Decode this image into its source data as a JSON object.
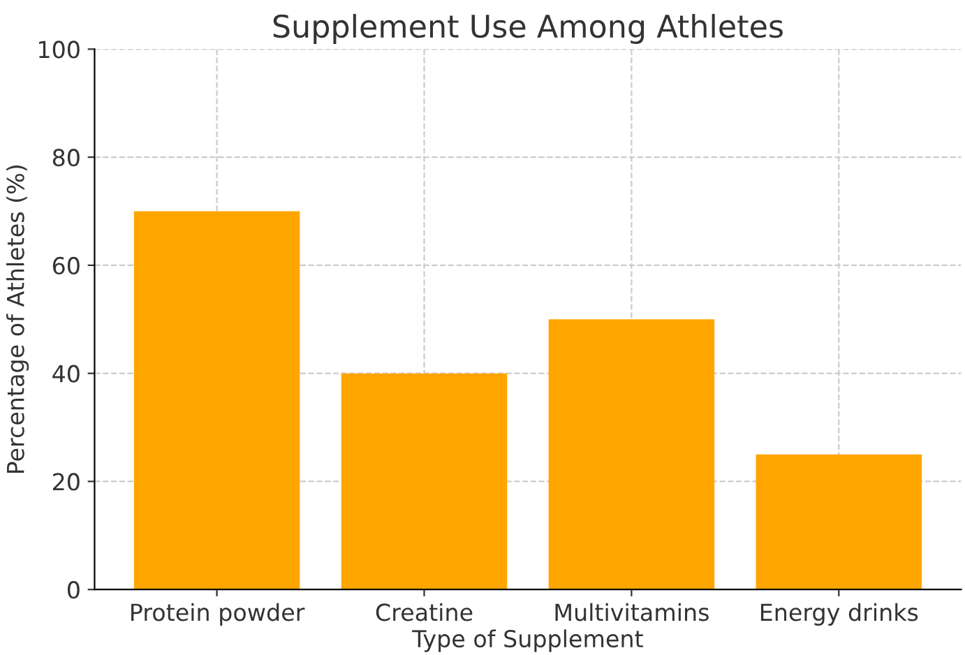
{
  "chart_data": {
    "type": "bar",
    "title": "Supplement Use Among Athletes",
    "xlabel": "Type of Supplement",
    "ylabel": "Percentage of Athletes (%)",
    "categories": [
      "Protein powder",
      "Creatine",
      "Multivitamins",
      "Energy drinks"
    ],
    "values": [
      70,
      40,
      50,
      25
    ],
    "color": "#ffa500",
    "ylim": [
      0,
      100
    ],
    "yticks": [
      0,
      20,
      40,
      60,
      80,
      100
    ],
    "grid": true
  }
}
